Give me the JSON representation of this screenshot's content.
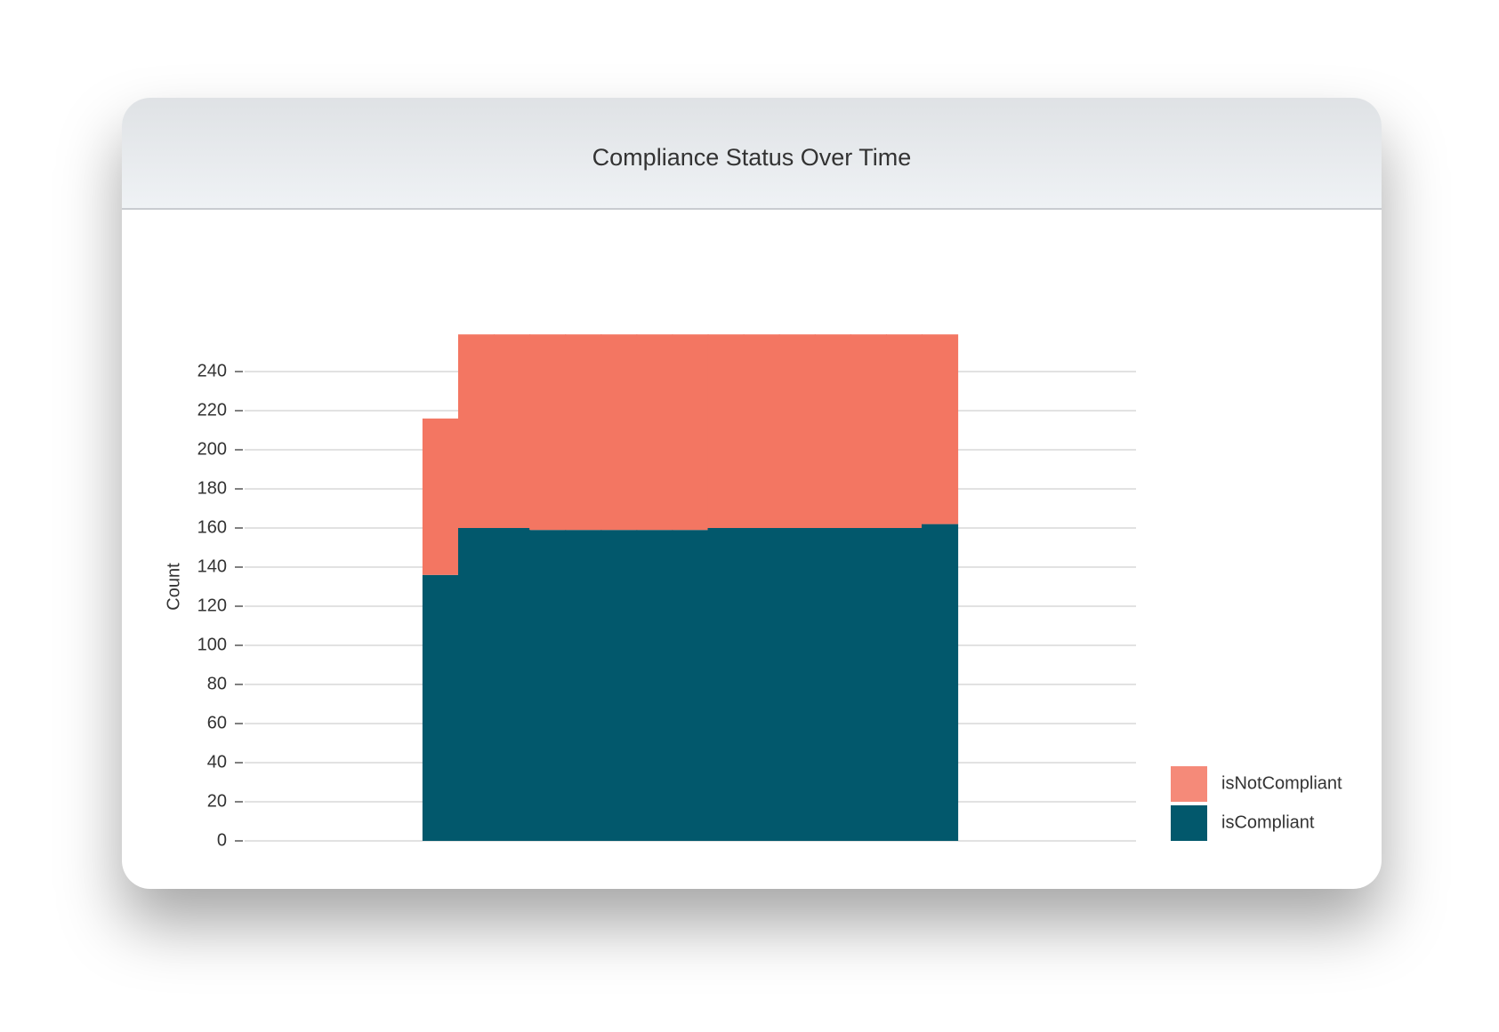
{
  "chart_data": {
    "type": "stacked-step-area",
    "title": "Compliance Status Over Time",
    "y_label": "Count",
    "categories": [
      null,
      null,
      null,
      null,
      null,
      null,
      null,
      null,
      null,
      null,
      null,
      null,
      null,
      null,
      null,
      null,
      null,
      null,
      null,
      null,
      null,
      null,
      null,
      null,
      null
    ],
    "series": [
      {
        "name": "isCompliant",
        "color": "#02586c",
        "values": [
          null,
          null,
          null,
          null,
          null,
          136,
          160,
          160,
          159,
          159,
          159,
          159,
          159,
          160,
          160,
          160,
          160,
          160,
          160,
          162,
          null,
          null,
          null,
          null,
          null
        ]
      },
      {
        "name": "isNotCompliant",
        "color": "#f37662",
        "values": [
          null,
          null,
          null,
          null,
          null,
          80,
          99,
          99,
          100,
          100,
          100,
          100,
          100,
          99,
          99,
          99,
          99,
          99,
          99,
          97,
          null,
          null,
          null,
          null,
          null
        ]
      }
    ],
    "ylim": [
      0,
      260
    ],
    "yticks": [
      0,
      20,
      40,
      60,
      80,
      100,
      120,
      140,
      160,
      180,
      200,
      220,
      240
    ],
    "grid": true,
    "legend": "bottom-right"
  }
}
